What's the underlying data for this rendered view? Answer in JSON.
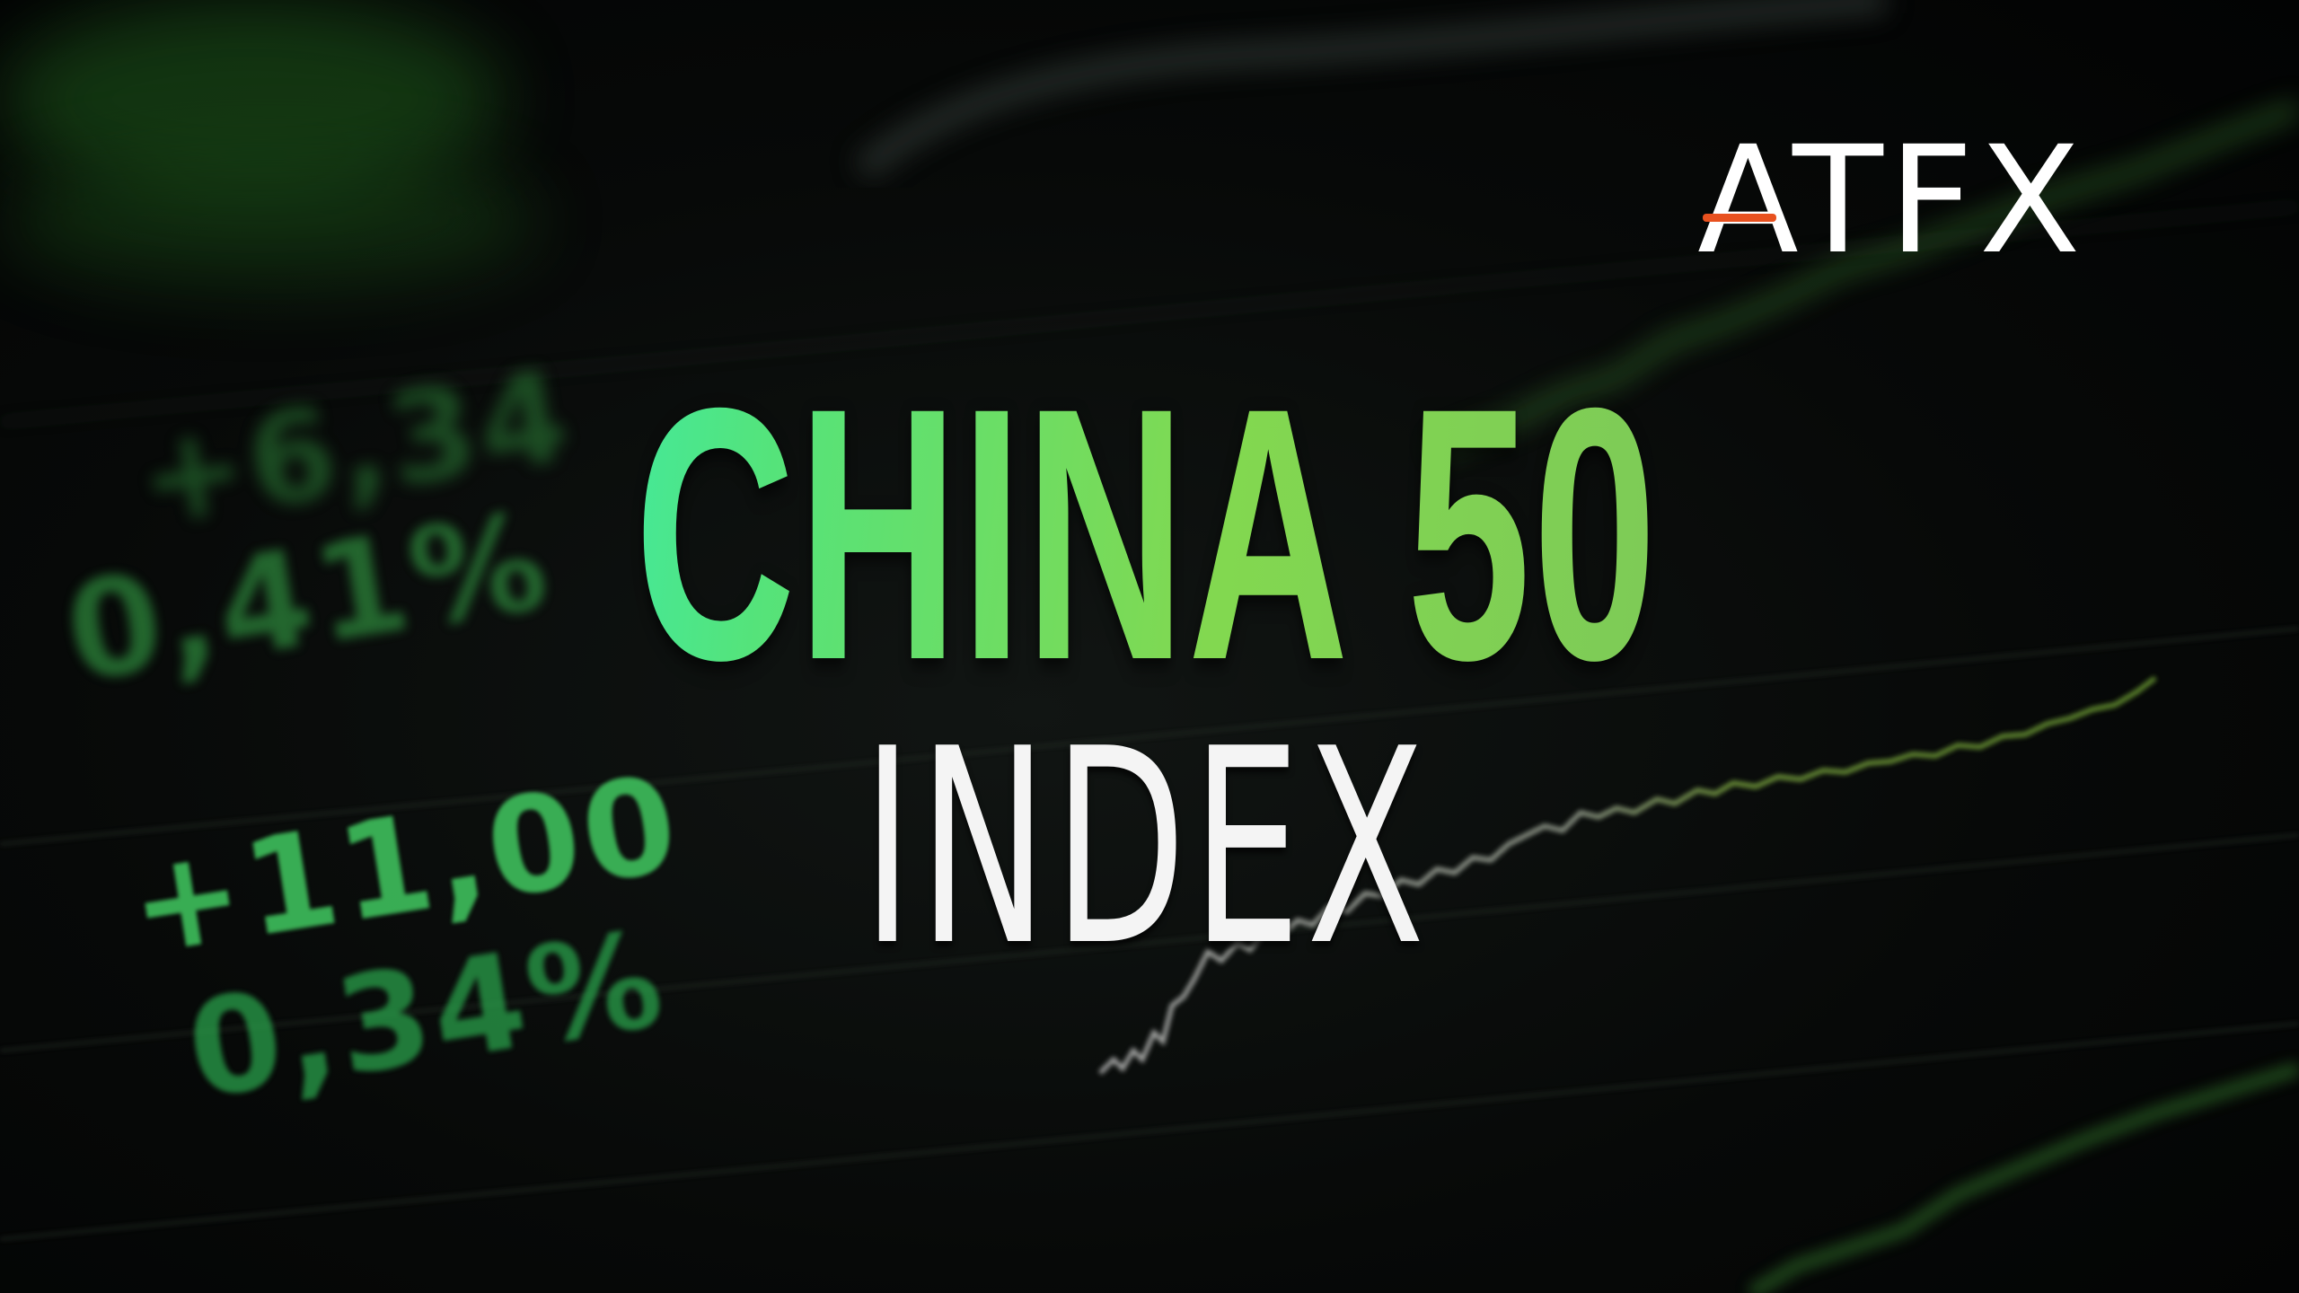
{
  "logo": {
    "text": "ATFX",
    "accent_color": "#e8511f"
  },
  "title": {
    "line1": "CHINA 50",
    "line2": "INDEX",
    "line1_gradient": [
      "#2ff0c0",
      "#55e37a",
      "#82d850",
      "#7cc45a"
    ],
    "line2_color": "#f4f4f4"
  },
  "background": {
    "ticker_values": [
      "+6,34",
      "0,41%",
      "+11,00",
      "0,34%"
    ],
    "ticker_color": "#3fbf5c"
  }
}
